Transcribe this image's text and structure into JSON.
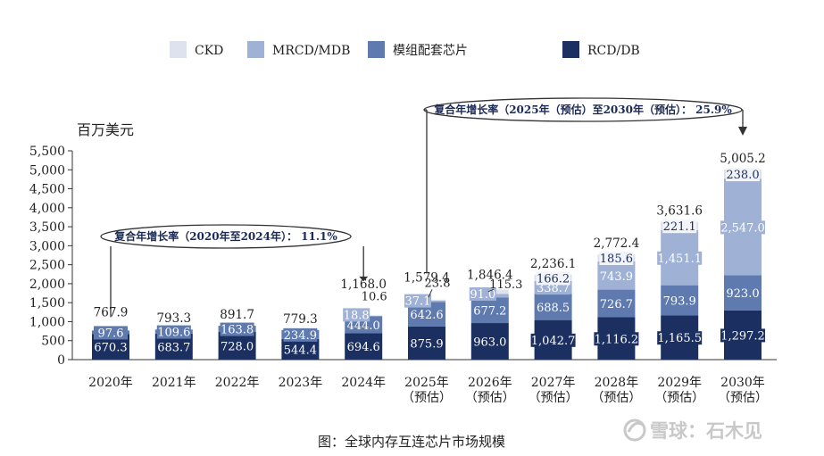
{
  "chart_data": {
    "type": "bar",
    "stacked": true,
    "unit_label": "百万美元",
    "caption": "图：全球内存互连芯片市场规模",
    "categories": [
      [
        "2020年"
      ],
      [
        "2021年"
      ],
      [
        "2022年"
      ],
      [
        "2023年"
      ],
      [
        "2024年"
      ],
      [
        "2025年",
        "（预估）"
      ],
      [
        "2026年",
        "（预估）"
      ],
      [
        "2027年",
        "（预估）"
      ],
      [
        "2028年",
        "（预估）"
      ],
      [
        "2029年",
        "（预估）"
      ],
      [
        "2030年",
        "（预估）"
      ]
    ],
    "series": [
      {
        "name": "RCD/DB",
        "color": "#1b3060",
        "values": [
          670.3,
          683.7,
          728.0,
          544.4,
          694.6,
          875.9,
          963.0,
          1042.7,
          1116.2,
          1165.5,
          1297.2
        ],
        "labels": [
          "670.3",
          "683.7",
          "728.0",
          "544.4",
          "694.6",
          "875.9",
          "963.0",
          "1,042.7",
          "1,116.2",
          "1,165.5",
          "1,297.2"
        ]
      },
      {
        "name": "模组配套芯片",
        "color": "#5e7aae",
        "values": [
          97.6,
          109.6,
          163.8,
          234.9,
          444.0,
          642.6,
          677.2,
          688.5,
          726.7,
          793.9,
          923.0
        ],
        "labels": [
          "97.6",
          "109.6",
          "163.8",
          "234.9",
          "444.0",
          "642.6",
          "677.2",
          "688.5",
          "726.7",
          "793.9",
          "923.0"
        ]
      },
      {
        "name": "MRCD/MDB",
        "color": "#9fb1d4",
        "values": [
          0,
          0,
          0,
          0,
          18.8,
          37.1,
          91.0,
          338.7,
          743.9,
          1451.1,
          2547.0
        ],
        "labels": [
          "",
          "",
          "",
          "",
          "18.8",
          "37.1",
          "91.0",
          "338.7",
          "743.9",
          "1,451.1",
          "2,547.0"
        ]
      },
      {
        "name": "CKD",
        "color": "#dde2ee",
        "values": [
          0,
          0,
          0,
          0,
          10.6,
          23.8,
          115.3,
          166.2,
          185.6,
          221.1,
          238.0
        ],
        "labels": [
          "",
          "",
          "",
          "",
          "10.6",
          "23.8",
          "115.3",
          "166.2",
          "185.6",
          "221.1",
          "238.0"
        ]
      }
    ],
    "totals": [
      "767.9",
      "793.3",
      "891.7",
      "779.3",
      "1,168.0",
      "1,579.4",
      "1,846.4",
      "2,236.1",
      "2,772.4",
      "3,631.6",
      "5,005.2"
    ],
    "y_ticks": [
      "0",
      "500",
      "1,000",
      "1,500",
      "2,000",
      "2,500",
      "3,000",
      "3,500",
      "4,000",
      "4,500",
      "5,000",
      "5,500"
    ],
    "ylim": [
      0,
      5500
    ],
    "legend_order": [
      "CKD",
      "MRCD/MDB",
      "模组配套芯片",
      "RCD/DB"
    ],
    "legend_position": "top",
    "grid": false,
    "annotations": [
      {
        "text": "复合年增长率（2020年至2024年）：  11.1%",
        "from_index": 0,
        "to_index": 4
      },
      {
        "text": "复合年增长率（2025年（预估）至2030年（预估）：  25.9%",
        "from_index": 5,
        "to_index": 10
      }
    ]
  },
  "watermark": "雪球：石木见"
}
